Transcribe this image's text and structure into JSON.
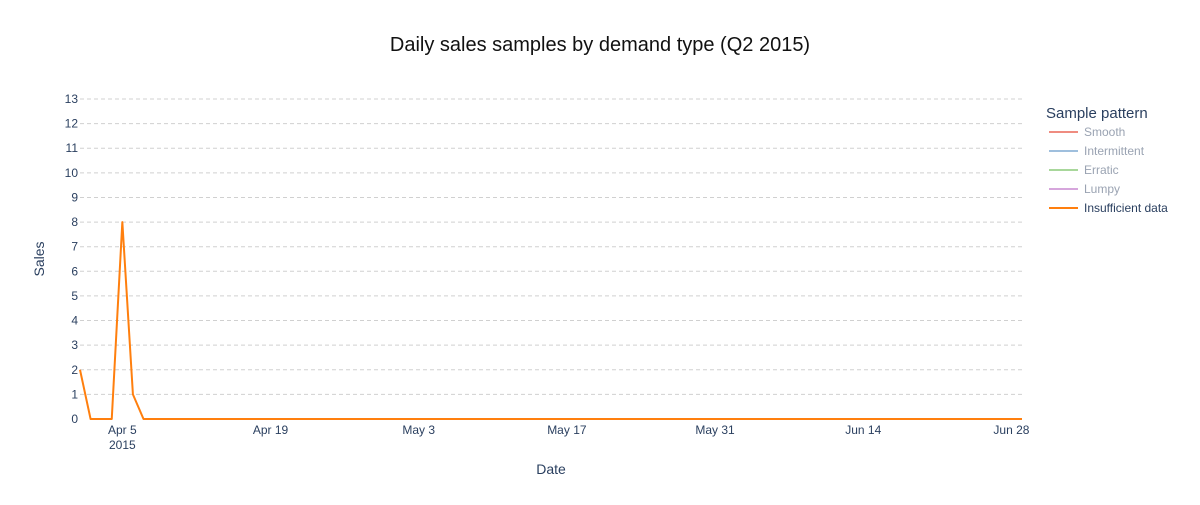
{
  "colors": {
    "smooth": "#ef8c80",
    "intermittent": "#9fbfdd",
    "erratic": "#a8d79b",
    "lumpy": "#d6a6dc",
    "insufficient": "#ff7f0e",
    "grid": "#d0d0d0",
    "text": "#2a3f5f",
    "legend_muted": "#9aa3b2"
  },
  "chart_data": {
    "type": "line",
    "title": "Daily sales samples by demand type (Q2 2015)",
    "xlabel": "Date",
    "ylabel": "Sales",
    "ylim": [
      0,
      13
    ],
    "yticks": [
      0,
      1,
      2,
      3,
      4,
      5,
      6,
      7,
      8,
      9,
      10,
      11,
      12,
      13
    ],
    "xlim": [
      "2015-04-01",
      "2015-06-29"
    ],
    "xticks": [
      {
        "date": "2015-04-05",
        "label": "Apr 5",
        "sublabel": "2015"
      },
      {
        "date": "2015-04-19",
        "label": "Apr 19",
        "sublabel": ""
      },
      {
        "date": "2015-05-03",
        "label": "May 3",
        "sublabel": ""
      },
      {
        "date": "2015-05-17",
        "label": "May 17",
        "sublabel": ""
      },
      {
        "date": "2015-05-31",
        "label": "May 31",
        "sublabel": ""
      },
      {
        "date": "2015-06-14",
        "label": "Jun 14",
        "sublabel": ""
      },
      {
        "date": "2015-06-28",
        "label": "Jun 28",
        "sublabel": ""
      }
    ],
    "grid": true,
    "legend": {
      "title": "Sample pattern",
      "placement": "right"
    },
    "series": [
      {
        "name": "Smooth",
        "color_key": "smooth",
        "visible": false,
        "points": []
      },
      {
        "name": "Intermittent",
        "color_key": "intermittent",
        "visible": false,
        "points": []
      },
      {
        "name": "Erratic",
        "color_key": "erratic",
        "visible": false,
        "points": []
      },
      {
        "name": "Lumpy",
        "color_key": "lumpy",
        "visible": false,
        "points": []
      },
      {
        "name": "Insufficient data",
        "color_key": "insufficient",
        "visible": true,
        "points": [
          [
            "2015-04-01",
            2
          ],
          [
            "2015-04-02",
            0
          ],
          [
            "2015-04-03",
            0
          ],
          [
            "2015-04-04",
            0
          ],
          [
            "2015-04-05",
            8
          ],
          [
            "2015-04-06",
            1
          ],
          [
            "2015-04-07",
            0
          ],
          [
            "2015-04-08",
            0
          ],
          [
            "2015-04-15",
            0
          ],
          [
            "2015-04-22",
            0
          ],
          [
            "2015-04-29",
            0
          ],
          [
            "2015-05-06",
            0
          ],
          [
            "2015-05-13",
            0
          ],
          [
            "2015-05-20",
            0
          ],
          [
            "2015-05-27",
            0
          ],
          [
            "2015-06-03",
            0
          ],
          [
            "2015-06-10",
            0
          ],
          [
            "2015-06-17",
            0
          ],
          [
            "2015-06-24",
            0
          ],
          [
            "2015-06-29",
            0
          ]
        ]
      }
    ]
  }
}
